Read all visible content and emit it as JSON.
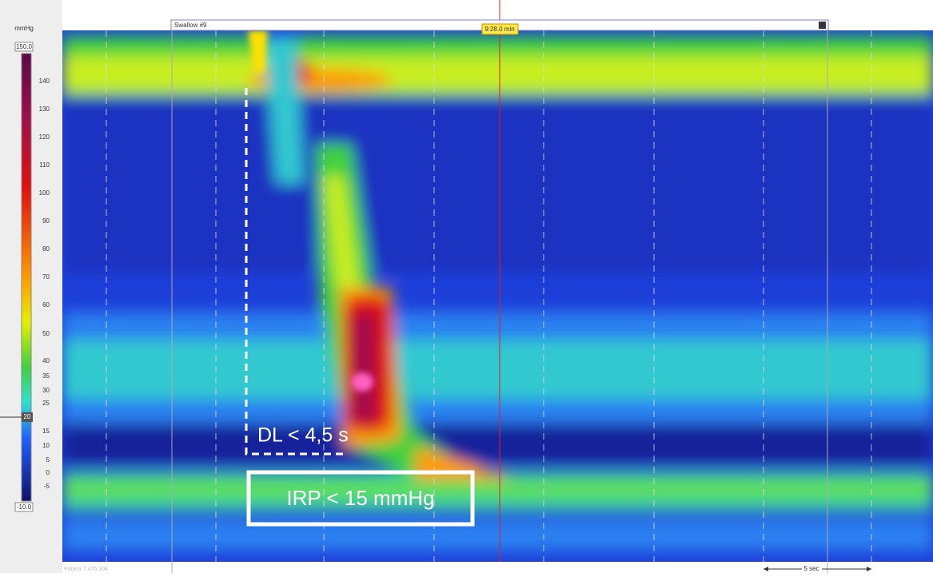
{
  "scale": {
    "unit": "mmHg",
    "max": "150.0",
    "min": "-10.0",
    "marker": "20",
    "labels": [
      "140",
      "130",
      "120",
      "110",
      "100",
      "90",
      "80",
      "70",
      "60",
      "50",
      "40",
      "35",
      "30",
      "25",
      "15",
      "10",
      "5",
      "0",
      "-5"
    ]
  },
  "window": {
    "title": "Swallow #9",
    "time": "9:28.0 min",
    "time_scale": "5 sec",
    "patient": "Patient 7.476.304"
  },
  "annotations": {
    "dl": "DL < 4,5 s",
    "irp": "IRP < 15 mmHg"
  }
}
